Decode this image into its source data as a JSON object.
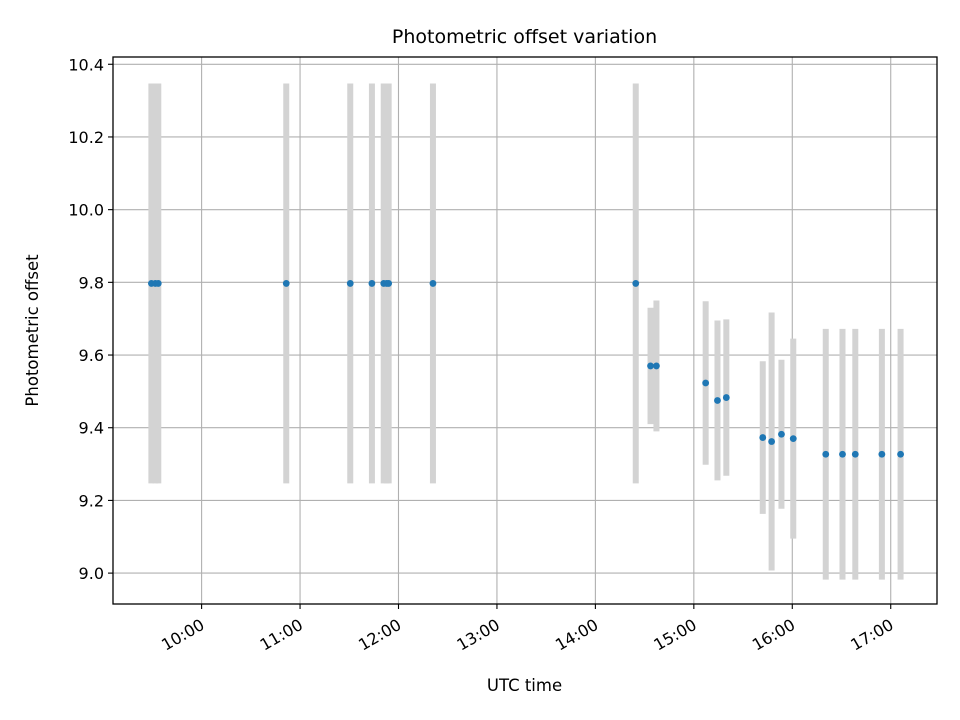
{
  "chart_data": {
    "type": "scatter",
    "title": "Photometric offset variation",
    "xlabel": "UTC time",
    "ylabel": "Photometric offset",
    "grid": true,
    "xlim": [
      9.1,
      17.47
    ],
    "ylim": [
      8.915,
      10.42
    ],
    "x_ticks": [
      {
        "value": 10,
        "label": "10:00"
      },
      {
        "value": 11,
        "label": "11:00"
      },
      {
        "value": 12,
        "label": "12:00"
      },
      {
        "value": 13,
        "label": "13:00"
      },
      {
        "value": 14,
        "label": "14:00"
      },
      {
        "value": 15,
        "label": "15:00"
      },
      {
        "value": 16,
        "label": "16:00"
      },
      {
        "value": 17,
        "label": "17:00"
      }
    ],
    "y_ticks": [
      {
        "value": 9.0,
        "label": "9.0"
      },
      {
        "value": 9.2,
        "label": "9.2"
      },
      {
        "value": 9.4,
        "label": "9.4"
      },
      {
        "value": 9.6,
        "label": "9.6"
      },
      {
        "value": 9.8,
        "label": "9.8"
      },
      {
        "value": 10.0,
        "label": "10.0"
      },
      {
        "value": 10.2,
        "label": "10.2"
      },
      {
        "value": 10.4,
        "label": "10.4"
      }
    ],
    "marker_color": "#1f77b4",
    "errorbar_color": "#d3d3d3",
    "series": [
      {
        "name": "Photometric offset",
        "points": [
          {
            "x": 9.49,
            "y": 9.797,
            "yerr": 0.55
          },
          {
            "x": 9.53,
            "y": 9.797,
            "yerr": 0.55
          },
          {
            "x": 9.56,
            "y": 9.797,
            "yerr": 0.55
          },
          {
            "x": 10.86,
            "y": 9.797,
            "yerr": 0.55
          },
          {
            "x": 11.51,
            "y": 9.797,
            "yerr": 0.55
          },
          {
            "x": 11.73,
            "y": 9.797,
            "yerr": 0.55
          },
          {
            "x": 11.85,
            "y": 9.797,
            "yerr": 0.55
          },
          {
            "x": 11.88,
            "y": 9.797,
            "yerr": 0.55
          },
          {
            "x": 11.9,
            "y": 9.797,
            "yerr": 0.55
          },
          {
            "x": 12.35,
            "y": 9.797,
            "yerr": 0.55
          },
          {
            "x": 14.41,
            "y": 9.797,
            "yerr": 0.55
          },
          {
            "x": 14.56,
            "y": 9.57,
            "yerr": 0.16
          },
          {
            "x": 14.62,
            "y": 9.57,
            "yerr": 0.18
          },
          {
            "x": 15.12,
            "y": 9.523,
            "yerr": 0.225
          },
          {
            "x": 15.24,
            "y": 9.475,
            "yerr": 0.22
          },
          {
            "x": 15.33,
            "y": 9.483,
            "yerr": 0.215
          },
          {
            "x": 15.7,
            "y": 9.373,
            "yerr": 0.21
          },
          {
            "x": 15.79,
            "y": 9.362,
            "yerr": 0.355
          },
          {
            "x": 15.89,
            "y": 9.382,
            "yerr": 0.205
          },
          {
            "x": 16.01,
            "y": 9.37,
            "yerr": 0.275
          },
          {
            "x": 16.34,
            "y": 9.327,
            "yerr": 0.345
          },
          {
            "x": 16.51,
            "y": 9.327,
            "yerr": 0.345
          },
          {
            "x": 16.64,
            "y": 9.327,
            "yerr": 0.345
          },
          {
            "x": 16.91,
            "y": 9.327,
            "yerr": 0.345
          },
          {
            "x": 17.1,
            "y": 9.327,
            "yerr": 0.345
          }
        ]
      }
    ]
  }
}
